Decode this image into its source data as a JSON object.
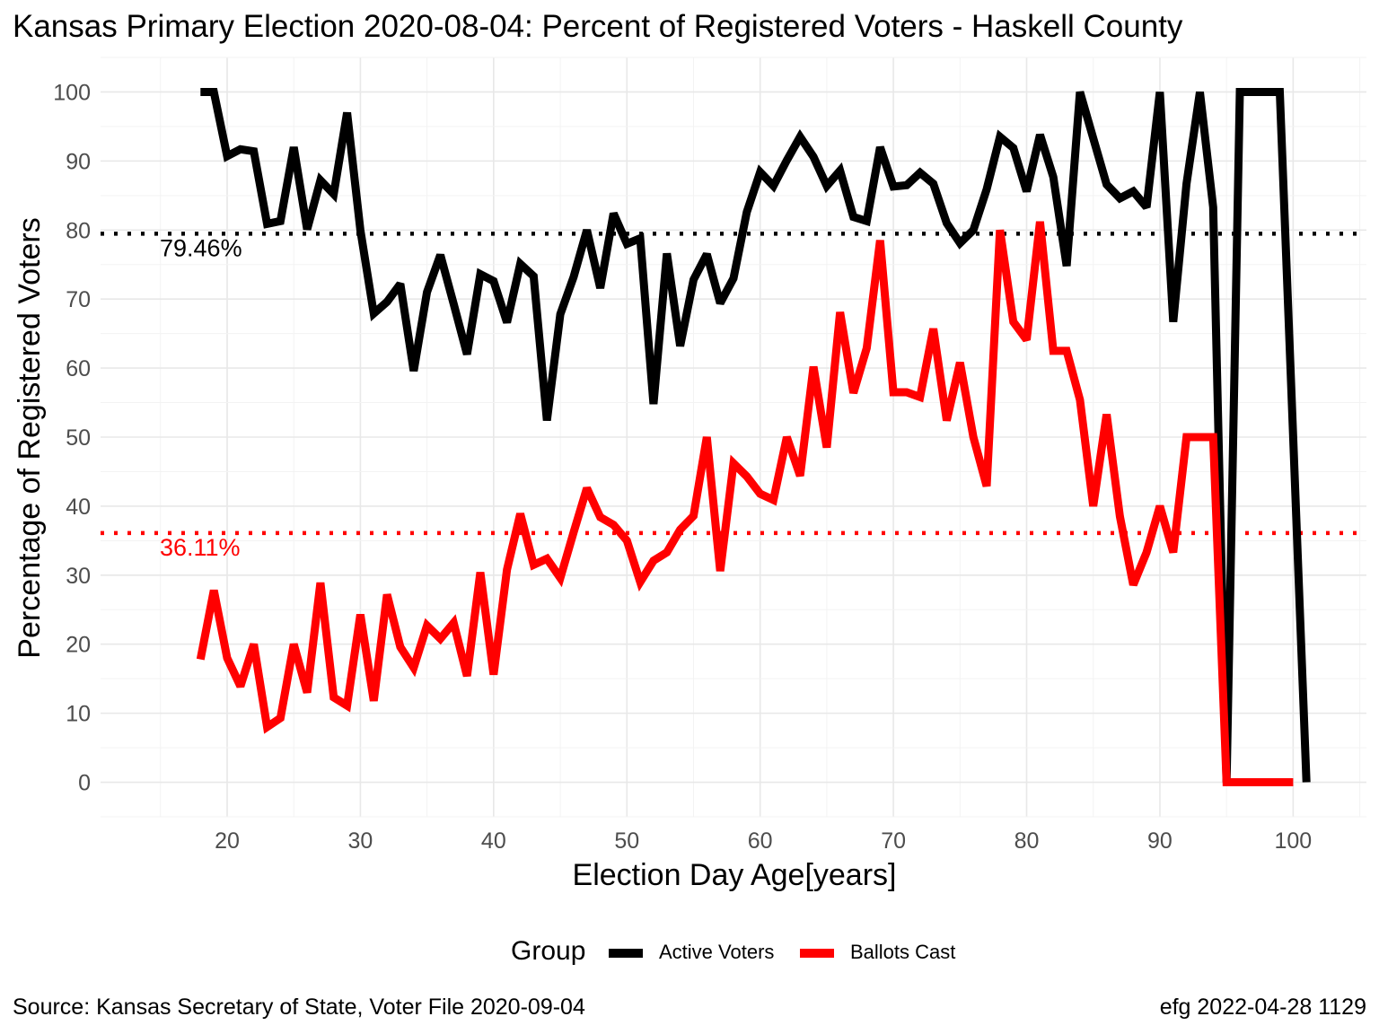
{
  "title": "Kansas Primary Election 2020-08-04:  Percent of Registered Voters - Haskell County",
  "source": "Source:  Kansas Secretary of State, Voter File  2020-09-04",
  "stamp": "efg 2022-04-28 1129",
  "legend": {
    "title": "Group",
    "items": [
      {
        "label": "Active Voters",
        "color": "#000000"
      },
      {
        "label": "Ballots Cast",
        "color": "#ff0000"
      }
    ]
  },
  "chart_data": {
    "type": "line",
    "xlabel": "Election Day Age[years]",
    "ylabel": "Percentage of Registered Voters",
    "xlim": [
      10.5,
      105.5
    ],
    "ylim": [
      -5,
      105
    ],
    "xticks": [
      20,
      30,
      40,
      50,
      60,
      70,
      80,
      90,
      100
    ],
    "yticks": [
      0,
      10,
      20,
      30,
      40,
      50,
      60,
      70,
      80,
      90,
      100
    ],
    "grid": true,
    "reference_lines": [
      {
        "value": 79.46,
        "label": "79.46%",
        "color": "#000000",
        "style": "dotted"
      },
      {
        "value": 36.11,
        "label": "36.11%",
        "color": "#ff0000",
        "style": "dotted"
      }
    ],
    "series": [
      {
        "name": "Active Voters",
        "color": "#000000",
        "x": [
          18,
          19,
          20,
          21,
          22,
          23,
          24,
          25,
          26,
          27,
          28,
          29,
          30,
          31,
          32,
          33,
          34,
          35,
          36,
          37,
          38,
          39,
          40,
          41,
          42,
          43,
          44,
          45,
          46,
          47,
          48,
          49,
          50,
          51,
          52,
          53,
          54,
          55,
          56,
          57,
          58,
          59,
          60,
          61,
          62,
          63,
          64,
          65,
          66,
          67,
          68,
          69,
          70,
          71,
          72,
          73,
          74,
          75,
          76,
          77,
          78,
          79,
          80,
          81,
          82,
          83,
          84,
          85,
          86,
          87,
          88,
          89,
          90,
          91,
          92,
          93,
          94,
          95,
          96,
          97,
          98,
          99,
          100,
          101
        ],
        "y": [
          100,
          100,
          90.7,
          91.7,
          91.4,
          80.9,
          81.3,
          92,
          80.1,
          87.2,
          85.2,
          97,
          80,
          67.9,
          69.6,
          72.2,
          59.6,
          71,
          76.4,
          69.3,
          62,
          73.6,
          72.6,
          66.6,
          75.1,
          73.3,
          52.4,
          67.8,
          73.2,
          80,
          71.6,
          82.4,
          78,
          78.8,
          54.8,
          76.6,
          63.2,
          72.8,
          76.5,
          69.4,
          73,
          82.6,
          88.4,
          86.4,
          90.1,
          93.5,
          90.6,
          86.4,
          88.6,
          81.9,
          81.3,
          92,
          86.3,
          86.5,
          88.3,
          86.7,
          81,
          78.1,
          80,
          85.9,
          93.5,
          91.9,
          85.6,
          93.8,
          87.7,
          74.8,
          100,
          93.3,
          86.6,
          84.6,
          85.6,
          83.3,
          100,
          66.7,
          86.7,
          100,
          83.3,
          0,
          100,
          100,
          100,
          100,
          50,
          0
        ]
      },
      {
        "name": "Ballots Cast",
        "color": "#ff0000",
        "x": [
          18,
          19,
          20,
          21,
          22,
          23,
          24,
          25,
          26,
          27,
          28,
          29,
          30,
          31,
          32,
          33,
          34,
          35,
          36,
          37,
          38,
          39,
          40,
          41,
          42,
          43,
          44,
          45,
          46,
          47,
          48,
          49,
          50,
          51,
          52,
          53,
          54,
          55,
          56,
          57,
          58,
          59,
          60,
          61,
          62,
          63,
          64,
          65,
          66,
          67,
          68,
          69,
          70,
          71,
          72,
          73,
          74,
          75,
          76,
          77,
          78,
          79,
          80,
          81,
          82,
          83,
          84,
          85,
          86,
          87,
          88,
          89,
          90,
          91,
          92,
          93,
          94,
          95,
          96,
          97,
          98,
          99,
          100
        ],
        "y": [
          17.8,
          27.8,
          18,
          13.9,
          20,
          8,
          9.3,
          20,
          13,
          28.9,
          12.3,
          11.1,
          24.3,
          11.8,
          27.2,
          19.6,
          16.6,
          22.7,
          20.8,
          23.1,
          15.4,
          30.4,
          15.6,
          30.8,
          38.9,
          31.5,
          32.4,
          29.6,
          36.2,
          42.6,
          38.4,
          37.3,
          35,
          29,
          32.1,
          33.3,
          36.6,
          38.6,
          50,
          30.6,
          46.2,
          44.3,
          41.8,
          40.9,
          50,
          44.4,
          60.2,
          48.5,
          68.1,
          56.4,
          62.9,
          78.5,
          56.5,
          56.5,
          55.8,
          65.7,
          52.4,
          60.8,
          50,
          42.9,
          80,
          66.7,
          64.1,
          81.2,
          62.5,
          62.5,
          55.4,
          40,
          53.3,
          38.5,
          28.6,
          33.3,
          40,
          33.3,
          50,
          50,
          50,
          0,
          0,
          0,
          0,
          0,
          0
        ]
      }
    ]
  }
}
